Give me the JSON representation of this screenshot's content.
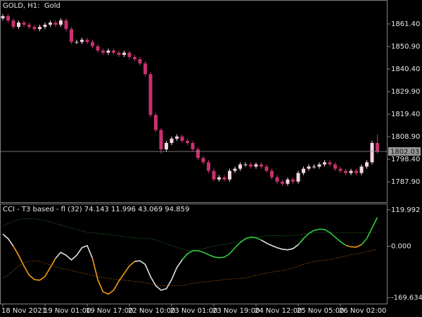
{
  "chart_data": [
    {
      "type": "candlestick",
      "title": "GOLD, H1:  Gold",
      "categories": [
        "18 Nov 2021",
        null,
        null,
        null,
        null,
        null,
        null,
        null,
        "19 Nov 01:00",
        null,
        null,
        null,
        null,
        null,
        null,
        null,
        "19 Nov 17:00",
        null,
        null,
        null,
        null,
        null,
        null,
        null,
        "22 Nov 10:00",
        null,
        null,
        null,
        null,
        null,
        null,
        null,
        "23 Nov 01:00",
        null,
        null,
        null,
        null,
        null,
        null,
        null,
        "23 Nov 19:00",
        null,
        null,
        null,
        null,
        null,
        null,
        null,
        "24 Nov 12:00",
        null,
        null,
        null,
        null,
        null,
        null,
        null,
        "25 Nov 05:00",
        null,
        null,
        null,
        null,
        null,
        null,
        null,
        "26 Nov 02:00",
        null,
        null,
        null,
        null,
        null,
        null,
        null
      ],
      "open": [
        1864,
        1865,
        1863,
        1860,
        1862,
        1861,
        1860,
        1859,
        1860,
        1861,
        1862,
        1861,
        1863,
        1859,
        1853,
        1853,
        1854,
        1853,
        1851,
        1849,
        1848,
        1849,
        1848,
        1847,
        1848,
        1846,
        1845,
        1843,
        1838,
        1819,
        1812,
        1803,
        1806,
        1808,
        1809,
        1807,
        1806,
        1803,
        1799,
        1797,
        1793,
        1789,
        1790,
        1789,
        1793,
        1794,
        1796,
        1796,
        1795,
        1796,
        1795,
        1793,
        1790,
        1788,
        1787,
        1789,
        1788,
        1792,
        1794,
        1795,
        1795,
        1796,
        1797,
        1796,
        1794,
        1793,
        1792,
        1793,
        1792,
        1795,
        1797,
        1806
      ],
      "high": [
        1866,
        1866,
        1864,
        1863,
        1863,
        1862,
        1861,
        1861,
        1862,
        1863,
        1863,
        1864,
        1864,
        1860,
        1854,
        1855,
        1855,
        1854,
        1852,
        1850,
        1850,
        1850,
        1849,
        1849,
        1849,
        1847,
        1846,
        1844,
        1839,
        1820,
        1813,
        1807,
        1809,
        1810,
        1810,
        1808,
        1807,
        1804,
        1800,
        1798,
        1794,
        1791,
        1791,
        1794,
        1795,
        1797,
        1797,
        1797,
        1797,
        1797,
        1796,
        1794,
        1791,
        1789,
        1790,
        1790,
        1793,
        1795,
        1796,
        1796,
        1797,
        1798,
        1798,
        1797,
        1795,
        1794,
        1794,
        1794,
        1796,
        1798,
        1807,
        1810
      ],
      "low": [
        1863,
        1862,
        1859,
        1859,
        1860,
        1859,
        1858,
        1858,
        1859,
        1860,
        1860,
        1860,
        1858,
        1852,
        1852,
        1852,
        1852,
        1850,
        1848,
        1847,
        1847,
        1847,
        1846,
        1846,
        1845,
        1844,
        1842,
        1837,
        1818,
        1811,
        1801,
        1802,
        1805,
        1807,
        1806,
        1805,
        1802,
        1798,
        1796,
        1792,
        1788,
        1788,
        1788,
        1788,
        1792,
        1793,
        1795,
        1794,
        1794,
        1794,
        1792,
        1789,
        1787,
        1786,
        1786,
        1787,
        1787,
        1791,
        1793,
        1794,
        1794,
        1795,
        1795,
        1793,
        1792,
        1791,
        1791,
        1791,
        1791,
        1794,
        1796,
        1801
      ],
      "close": [
        1865,
        1863,
        1860,
        1862,
        1861,
        1860,
        1859,
        1860,
        1861,
        1862,
        1861,
        1863,
        1859,
        1853,
        1853,
        1854,
        1853,
        1851,
        1849,
        1848,
        1849,
        1848,
        1847,
        1848,
        1846,
        1845,
        1843,
        1838,
        1819,
        1812,
        1803,
        1806,
        1808,
        1809,
        1807,
        1806,
        1803,
        1799,
        1797,
        1793,
        1789,
        1790,
        1789,
        1793,
        1794,
        1796,
        1796,
        1795,
        1796,
        1795,
        1793,
        1790,
        1788,
        1787,
        1789,
        1788,
        1792,
        1794,
        1795,
        1795,
        1796,
        1797,
        1796,
        1794,
        1793,
        1792,
        1793,
        1792,
        1795,
        1797,
        1806,
        1802.03
      ],
      "up_color": "#f6d5e0",
      "down_color": "#c8306e",
      "ylim": [
        1778.1,
        1872.2
      ],
      "yticks": [
        {
          "value": 1861.4,
          "label": "1861.40"
        },
        {
          "value": 1850.9,
          "label": "1850.90"
        },
        {
          "value": 1840.4,
          "label": "1840.40"
        },
        {
          "value": 1829.9,
          "label": "1829.90"
        },
        {
          "value": 1819.4,
          "label": "1819.40"
        },
        {
          "value": 1808.9,
          "label": "1808.90"
        },
        {
          "value": 1798.4,
          "label": "1798.40"
        },
        {
          "value": 1787.9,
          "label": "1787.90"
        }
      ],
      "last_price": 1802.03
    },
    {
      "type": "line",
      "title": "CCI - T3 based - fl (32) 74.143 11.996 43.069 94.859",
      "ylim": [
        -189,
        138
      ],
      "yticks": [
        119.992,
        {
          "value": 0,
          "label": "0.000"
        },
        -169.634
      ],
      "series": [
        {
          "color": "#2e7d32",
          "style": "dotted",
          "values": [
            67,
            75,
            82,
            88,
            90,
            91,
            90,
            88,
            84,
            80,
            75,
            70,
            65,
            60,
            55,
            50,
            46,
            44,
            42,
            40,
            38,
            36,
            34,
            32,
            30,
            28,
            26,
            25,
            24,
            20,
            14,
            8,
            2,
            -4,
            -10,
            -14,
            -14,
            -12,
            -8,
            -4,
            0,
            3,
            6,
            9,
            12,
            16,
            20,
            24,
            28,
            32,
            34,
            35,
            35,
            34,
            34,
            35,
            37,
            40,
            42,
            44,
            45,
            45,
            45,
            45,
            45,
            45,
            44,
            44,
            44,
            44,
            45,
            46
          ]
        },
        {
          "color": "#b8650f",
          "style": "dotted",
          "values": [
            -106,
            -95,
            -80,
            -65,
            -55,
            -50,
            -48,
            -50,
            -55,
            -62,
            -68,
            -72,
            -76,
            -80,
            -84,
            -88,
            -92,
            -96,
            -100,
            -104,
            -106,
            -108,
            -110,
            -112,
            -114,
            -116,
            -118,
            -120,
            -124,
            -128,
            -130,
            -130,
            -130,
            -130,
            -129,
            -126,
            -122,
            -120,
            -118,
            -116,
            -114,
            -112,
            -110,
            -108,
            -107,
            -106,
            -104,
            -100,
            -96,
            -92,
            -88,
            -85,
            -83,
            -80,
            -76,
            -72,
            -66,
            -60,
            -55,
            -50,
            -48,
            -46,
            -44,
            -40,
            -36,
            -32,
            -28,
            -25,
            -22,
            -18,
            -14,
            -10
          ]
        },
        {
          "color": "#e0e0e0",
          "style": "solid",
          "values": [
            40,
            25,
            0,
            null,
            null,
            null,
            null,
            null,
            null,
            null,
            -40,
            -20,
            -30,
            -45,
            -30,
            -5,
            2,
            -40,
            null,
            null,
            null,
            null,
            null,
            null,
            null,
            -50,
            -48,
            -60,
            -100,
            -130,
            -145,
            -140,
            -110,
            -70,
            -45,
            -25,
            null,
            null,
            null,
            null,
            null,
            null,
            null,
            null,
            null,
            null,
            null,
            null,
            null,
            20,
            10,
            2,
            -5,
            -10,
            -12,
            -8,
            5,
            25,
            null,
            null,
            null,
            null,
            null,
            null,
            null,
            null,
            null,
            null,
            null,
            null,
            null,
            null
          ]
        },
        {
          "color": "#f39c12",
          "style": "solid",
          "values": [
            null,
            null,
            0,
            -30,
            -65,
            -95,
            -110,
            -112,
            -100,
            -70,
            -40,
            null,
            null,
            null,
            null,
            null,
            null,
            -40,
            -110,
            -150,
            -158,
            -145,
            -115,
            -90,
            -65,
            -50,
            null,
            null,
            null,
            null,
            null,
            null,
            null,
            null,
            null,
            null,
            null,
            null,
            null,
            null,
            null,
            null,
            null,
            null,
            null,
            null,
            null,
            null,
            null,
            null,
            null,
            null,
            null,
            null,
            null,
            null,
            null,
            null,
            null,
            null,
            null,
            null,
            null,
            null,
            null,
            3,
            -2,
            -3,
            5,
            null,
            null,
            null
          ]
        },
        {
          "color": "#2ecc40",
          "style": "solid",
          "values": [
            null,
            null,
            null,
            null,
            null,
            null,
            null,
            null,
            null,
            null,
            null,
            null,
            null,
            null,
            null,
            null,
            null,
            null,
            null,
            null,
            null,
            null,
            null,
            null,
            null,
            null,
            null,
            null,
            null,
            null,
            null,
            null,
            null,
            null,
            -45,
            -25,
            -15,
            -15,
            -20,
            -28,
            -35,
            -38,
            -36,
            -25,
            -5,
            12,
            25,
            30,
            28,
            20,
            null,
            null,
            null,
            null,
            null,
            null,
            5,
            25,
            42,
            52,
            56,
            55,
            45,
            30,
            15,
            3,
            null,
            null,
            5,
            25,
            60,
            94.859
          ]
        }
      ]
    }
  ]
}
